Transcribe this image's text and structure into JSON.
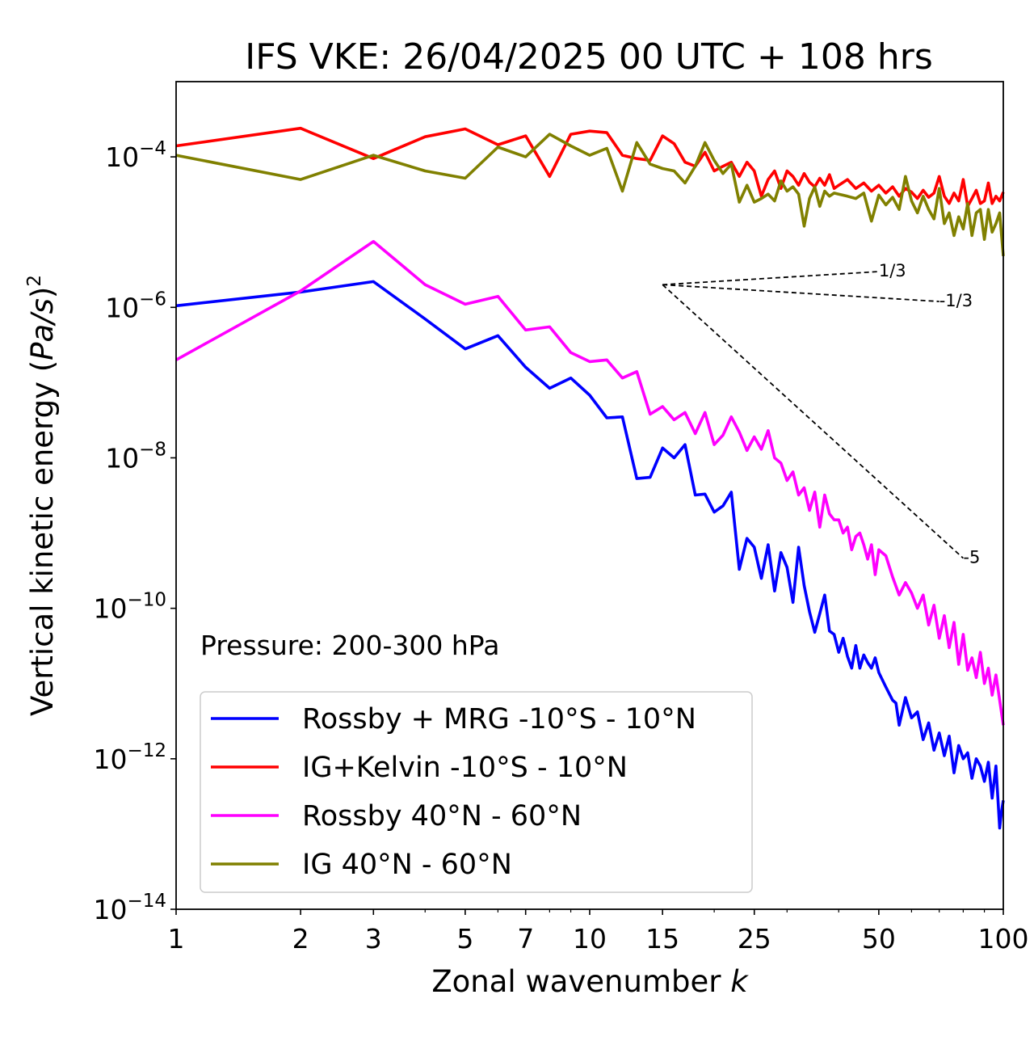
{
  "chart_data": {
    "type": "line",
    "title": "IFS VKE: 26/04/2025 00 UTC + 108 hrs",
    "xlabel_main": "Zonal wavenumber ",
    "xlabel_var": "k",
    "ylabel_main": "Vertical kinetic energy (",
    "ylabel_var": "Pa/s",
    "ylabel_close": ")",
    "ylabel_exp": "2",
    "xscale": "log",
    "yscale": "log",
    "xlim": [
      1,
      100
    ],
    "ylim": [
      1e-14,
      0.001
    ],
    "xticks": [
      1,
      2,
      3,
      5,
      7,
      10,
      15,
      25,
      50,
      100
    ],
    "xtick_labels": [
      "1",
      "2",
      "3",
      "5",
      "7",
      "10",
      "15",
      "25",
      "50",
      "100"
    ],
    "yticks": [
      -14,
      -12,
      -10,
      -8,
      -6,
      -4
    ],
    "ytick_base": "10",
    "ytick_exps": [
      "−14",
      "−12",
      "−10",
      "−8",
      "−6",
      "−4"
    ],
    "annotation": "Pressure: 200-300 hPa",
    "legend_position": "lower-left",
    "series": [
      {
        "name": "Rossby + MRG -10°S - 10°N",
        "color": "#0000ff",
        "points": [
          [
            1,
            1.05e-06
          ],
          [
            2,
            1.6e-06
          ],
          [
            3,
            2.2e-06
          ],
          [
            4,
            7e-07
          ],
          [
            5,
            2.8e-07
          ],
          [
            6,
            4.2e-07
          ],
          [
            7,
            1.6e-07
          ],
          [
            8,
            8.4e-08
          ],
          [
            9,
            1.15e-07
          ],
          [
            10,
            6.8e-08
          ],
          [
            11,
            3.4e-08
          ],
          [
            12,
            3.5e-08
          ],
          [
            13,
            5.3e-09
          ],
          [
            14,
            5.5e-09
          ],
          [
            15,
            1.35e-08
          ],
          [
            16,
            1e-08
          ],
          [
            17,
            1.5e-08
          ],
          [
            18,
            3.2e-09
          ],
          [
            19,
            3.3e-09
          ],
          [
            20,
            1.9e-09
          ],
          [
            21,
            2.3e-09
          ],
          [
            22,
            3.5e-09
          ],
          [
            23,
            3.3e-10
          ],
          [
            24,
            8.5e-10
          ],
          [
            25,
            6.5e-10
          ],
          [
            26,
            2.5e-10
          ],
          [
            27,
            7e-10
          ],
          [
            28,
            1.7e-10
          ],
          [
            29,
            5.5e-10
          ],
          [
            30,
            3.5e-10
          ],
          [
            31,
            1.2e-10
          ],
          [
            32,
            6.5e-10
          ],
          [
            33,
            2e-10
          ],
          [
            34,
            9e-11
          ],
          [
            35,
            4.8e-11
          ],
          [
            36,
            8.5e-11
          ],
          [
            37,
            1.5e-10
          ],
          [
            38,
            5e-11
          ],
          [
            39,
            4.5e-11
          ],
          [
            40,
            2.6e-11
          ],
          [
            41,
            4e-11
          ],
          [
            42,
            2.3e-11
          ],
          [
            43,
            1.6e-11
          ],
          [
            44,
            3.2e-11
          ],
          [
            45,
            1.6e-11
          ],
          [
            46,
            2.4e-11
          ],
          [
            47,
            1.9e-11
          ],
          [
            48,
            1.6e-11
          ],
          [
            49,
            2.2e-11
          ],
          [
            50,
            1.4e-11
          ],
          [
            52,
            9e-12
          ],
          [
            54,
            6e-12
          ],
          [
            55,
            5.5e-12
          ],
          [
            56,
            2.8e-12
          ],
          [
            58,
            6.5e-12
          ],
          [
            60,
            3.5e-12
          ],
          [
            62,
            4.2e-12
          ],
          [
            64,
            1.8e-12
          ],
          [
            66,
            3e-12
          ],
          [
            68,
            1.3e-12
          ],
          [
            70,
            2.2e-12
          ],
          [
            72,
            1.1e-12
          ],
          [
            74,
            2e-12
          ],
          [
            76,
            6.5e-13
          ],
          [
            78,
            1.5e-12
          ],
          [
            80,
            1e-12
          ],
          [
            82,
            1.2e-12
          ],
          [
            84,
            5.5e-13
          ],
          [
            86,
            1e-12
          ],
          [
            88,
            8e-13
          ],
          [
            90,
            5e-13
          ],
          [
            92,
            9e-13
          ],
          [
            94,
            3e-13
          ],
          [
            96,
            8e-13
          ],
          [
            98,
            1.2e-13
          ],
          [
            99,
            2e-13
          ],
          [
            100,
            2.8e-13
          ]
        ]
      },
      {
        "name": "IG+Kelvin -10°S - 10°N",
        "color": "#ff0000",
        "points": [
          [
            1,
            0.00014
          ],
          [
            2,
            0.00024
          ],
          [
            3,
            9.5e-05
          ],
          [
            4,
            0.000185
          ],
          [
            5,
            0.000235
          ],
          [
            6,
            0.000145
          ],
          [
            7,
            0.00019
          ],
          [
            8,
            5.5e-05
          ],
          [
            9,
            0.0002
          ],
          [
            10,
            0.00022
          ],
          [
            11,
            0.00021
          ],
          [
            12,
            0.000105
          ],
          [
            13,
            9.5e-05
          ],
          [
            14,
            9e-05
          ],
          [
            15,
            0.00019
          ],
          [
            16,
            0.00015
          ],
          [
            17,
            8.5e-05
          ],
          [
            18,
            7.5e-05
          ],
          [
            19,
            0.000115
          ],
          [
            20,
            6.5e-05
          ],
          [
            21,
            7.5e-05
          ],
          [
            22,
            8.5e-05
          ],
          [
            23,
            5.5e-05
          ],
          [
            24,
            8.5e-05
          ],
          [
            25,
            6.5e-05
          ],
          [
            26,
            3e-05
          ],
          [
            27,
            5e-05
          ],
          [
            28,
            6.5e-05
          ],
          [
            29,
            3.8e-05
          ],
          [
            30,
            6.5e-05
          ],
          [
            31,
            5.5e-05
          ],
          [
            32,
            4.2e-05
          ],
          [
            33,
            6e-05
          ],
          [
            34,
            4.6e-05
          ],
          [
            35,
            4e-05
          ],
          [
            36,
            5.2e-05
          ],
          [
            37,
            4.2e-05
          ],
          [
            38,
            5.8e-05
          ],
          [
            39,
            3.8e-05
          ],
          [
            40,
            4.2e-05
          ],
          [
            42,
            5e-05
          ],
          [
            44,
            3.8e-05
          ],
          [
            46,
            4.5e-05
          ],
          [
            48,
            3.5e-05
          ],
          [
            50,
            4.2e-05
          ],
          [
            52,
            3.3e-05
          ],
          [
            54,
            4e-05
          ],
          [
            56,
            3e-05
          ],
          [
            58,
            3.8e-05
          ],
          [
            60,
            3.4e-05
          ],
          [
            62,
            2.8e-05
          ],
          [
            64,
            3.6e-05
          ],
          [
            66,
            2.9e-05
          ],
          [
            68,
            3.3e-05
          ],
          [
            70,
            5.5e-05
          ],
          [
            72,
            3e-05
          ],
          [
            74,
            2.4e-05
          ],
          [
            76,
            3.3e-05
          ],
          [
            78,
            2.6e-05
          ],
          [
            80,
            5e-05
          ],
          [
            82,
            2.2e-05
          ],
          [
            84,
            2.8e-05
          ],
          [
            86,
            3.6e-05
          ],
          [
            88,
            2.4e-05
          ],
          [
            90,
            2.6e-05
          ],
          [
            92,
            4.5e-05
          ],
          [
            94,
            2.4e-05
          ],
          [
            96,
            3e-05
          ],
          [
            98,
            2.6e-05
          ],
          [
            100,
            3.4e-05
          ]
        ]
      },
      {
        "name": "Rossby 40°N - 60°N",
        "color": "#ff00ff",
        "points": [
          [
            1,
            2e-07
          ],
          [
            2,
            1.65e-06
          ],
          [
            3,
            7.5e-06
          ],
          [
            4,
            2e-06
          ],
          [
            5,
            1.1e-06
          ],
          [
            6,
            1.4e-06
          ],
          [
            7,
            5e-07
          ],
          [
            8,
            5.5e-07
          ],
          [
            9,
            2.5e-07
          ],
          [
            10,
            1.9e-07
          ],
          [
            11,
            2e-07
          ],
          [
            12,
            1.15e-07
          ],
          [
            13,
            1.4e-07
          ],
          [
            14,
            3.8e-08
          ],
          [
            15,
            4.8e-08
          ],
          [
            16,
            3.2e-08
          ],
          [
            17,
            4e-08
          ],
          [
            18,
            2.1e-08
          ],
          [
            19,
            4e-08
          ],
          [
            20,
            1.5e-08
          ],
          [
            21,
            2e-08
          ],
          [
            22,
            3.5e-08
          ],
          [
            23,
            2.2e-08
          ],
          [
            24,
            1.25e-08
          ],
          [
            25,
            1.9e-08
          ],
          [
            26,
            1.3e-08
          ],
          [
            27,
            2.3e-08
          ],
          [
            28,
            1e-08
          ],
          [
            29,
            8.5e-09
          ],
          [
            30,
            5e-09
          ],
          [
            31,
            6.5e-09
          ],
          [
            32,
            3.2e-09
          ],
          [
            33,
            4e-09
          ],
          [
            34,
            2e-09
          ],
          [
            35,
            3.5e-09
          ],
          [
            36,
            1.2e-09
          ],
          [
            37,
            3.2e-09
          ],
          [
            38,
            1.8e-09
          ],
          [
            39,
            1.5e-09
          ],
          [
            40,
            1.5e-09
          ],
          [
            41,
            1e-09
          ],
          [
            42,
            1.2e-09
          ],
          [
            43,
            6e-10
          ],
          [
            44,
            9e-10
          ],
          [
            45,
            1e-09
          ],
          [
            46,
            7e-10
          ],
          [
            47,
            4.5e-10
          ],
          [
            48,
            7e-10
          ],
          [
            49,
            2.8e-10
          ],
          [
            50,
            6e-10
          ],
          [
            52,
            5e-10
          ],
          [
            54,
            2.6e-10
          ],
          [
            56,
            1.5e-10
          ],
          [
            58,
            2.2e-10
          ],
          [
            60,
            1.6e-10
          ],
          [
            62,
            1e-10
          ],
          [
            64,
            1.5e-10
          ],
          [
            66,
            6e-11
          ],
          [
            68,
            1.1e-10
          ],
          [
            70,
            4e-11
          ],
          [
            72,
            8e-11
          ],
          [
            74,
            3e-11
          ],
          [
            76,
            6.5e-11
          ],
          [
            78,
            1.8e-11
          ],
          [
            80,
            4.5e-11
          ],
          [
            82,
            1.5e-11
          ],
          [
            84,
            2.2e-11
          ],
          [
            86,
            1.2e-11
          ],
          [
            88,
            2.6e-11
          ],
          [
            90,
            1e-11
          ],
          [
            92,
            1.6e-11
          ],
          [
            94,
            7e-12
          ],
          [
            96,
            1.3e-11
          ],
          [
            98,
            6e-12
          ],
          [
            100,
            2.8e-12
          ]
        ]
      },
      {
        "name": "IG 40°N - 60°N",
        "color": "#808000",
        "points": [
          [
            1,
            0.000105
          ],
          [
            2,
            5e-05
          ],
          [
            3,
            0.000105
          ],
          [
            4,
            6.5e-05
          ],
          [
            5,
            5.2e-05
          ],
          [
            6,
            0.000135
          ],
          [
            7,
            0.0001
          ],
          [
            8,
            0.0002
          ],
          [
            9,
            0.00014
          ],
          [
            10,
            0.000105
          ],
          [
            11,
            0.00013
          ],
          [
            12,
            3.5e-05
          ],
          [
            13,
            0.000155
          ],
          [
            14,
            8e-05
          ],
          [
            15,
            7e-05
          ],
          [
            16,
            6.5e-05
          ],
          [
            17,
            4.5e-05
          ],
          [
            18,
            7.5e-05
          ],
          [
            19,
            0.000155
          ],
          [
            20,
            9e-05
          ],
          [
            21,
            6e-05
          ],
          [
            22,
            8e-05
          ],
          [
            23,
            2.5e-05
          ],
          [
            24,
            4.2e-05
          ],
          [
            25,
            2.5e-05
          ],
          [
            26,
            2.8e-05
          ],
          [
            27,
            3.2e-05
          ],
          [
            28,
            2.6e-05
          ],
          [
            29,
            4.8e-05
          ],
          [
            30,
            3.5e-05
          ],
          [
            31,
            4e-05
          ],
          [
            32,
            3.2e-05
          ],
          [
            33,
            1.2e-05
          ],
          [
            34,
            2.8e-05
          ],
          [
            35,
            4e-05
          ],
          [
            36,
            2.2e-05
          ],
          [
            37,
            3.5e-05
          ],
          [
            38,
            3e-05
          ],
          [
            39,
            3.3e-05
          ],
          [
            40,
            3.2e-05
          ],
          [
            42,
            3e-05
          ],
          [
            44,
            2.8e-05
          ],
          [
            46,
            3.3e-05
          ],
          [
            48,
            1.4e-05
          ],
          [
            50,
            3.1e-05
          ],
          [
            52,
            2.3e-05
          ],
          [
            54,
            2.9e-05
          ],
          [
            56,
            2e-05
          ],
          [
            58,
            5.5e-05
          ],
          [
            60,
            2.6e-05
          ],
          [
            62,
            1.8e-05
          ],
          [
            64,
            3e-05
          ],
          [
            66,
            2e-05
          ],
          [
            68,
            1.5e-05
          ],
          [
            70,
            3.8e-05
          ],
          [
            72,
            1.3e-05
          ],
          [
            74,
            1.8e-05
          ],
          [
            76,
            9e-06
          ],
          [
            78,
            1.6e-05
          ],
          [
            80,
            1.1e-05
          ],
          [
            82,
            2.4e-05
          ],
          [
            84,
            9e-06
          ],
          [
            86,
            1.8e-05
          ],
          [
            88,
            2e-05
          ],
          [
            90,
            8e-06
          ],
          [
            92,
            2e-05
          ],
          [
            94,
            1e-05
          ],
          [
            96,
            1.3e-05
          ],
          [
            98,
            1.8e-05
          ],
          [
            100,
            4.8e-06
          ]
        ]
      }
    ],
    "reference_slopes": [
      {
        "label": "1/3",
        "slope": 0.3333,
        "x0": 15,
        "y0": 2e-06,
        "x1": 50
      },
      {
        "label": "-1/3",
        "slope": -0.3333,
        "x0": 15,
        "y0": 2e-06,
        "x1": 70
      },
      {
        "label": "-5",
        "slope": -5,
        "x0": 15,
        "y0": 2e-06,
        "x1": 80
      }
    ]
  }
}
